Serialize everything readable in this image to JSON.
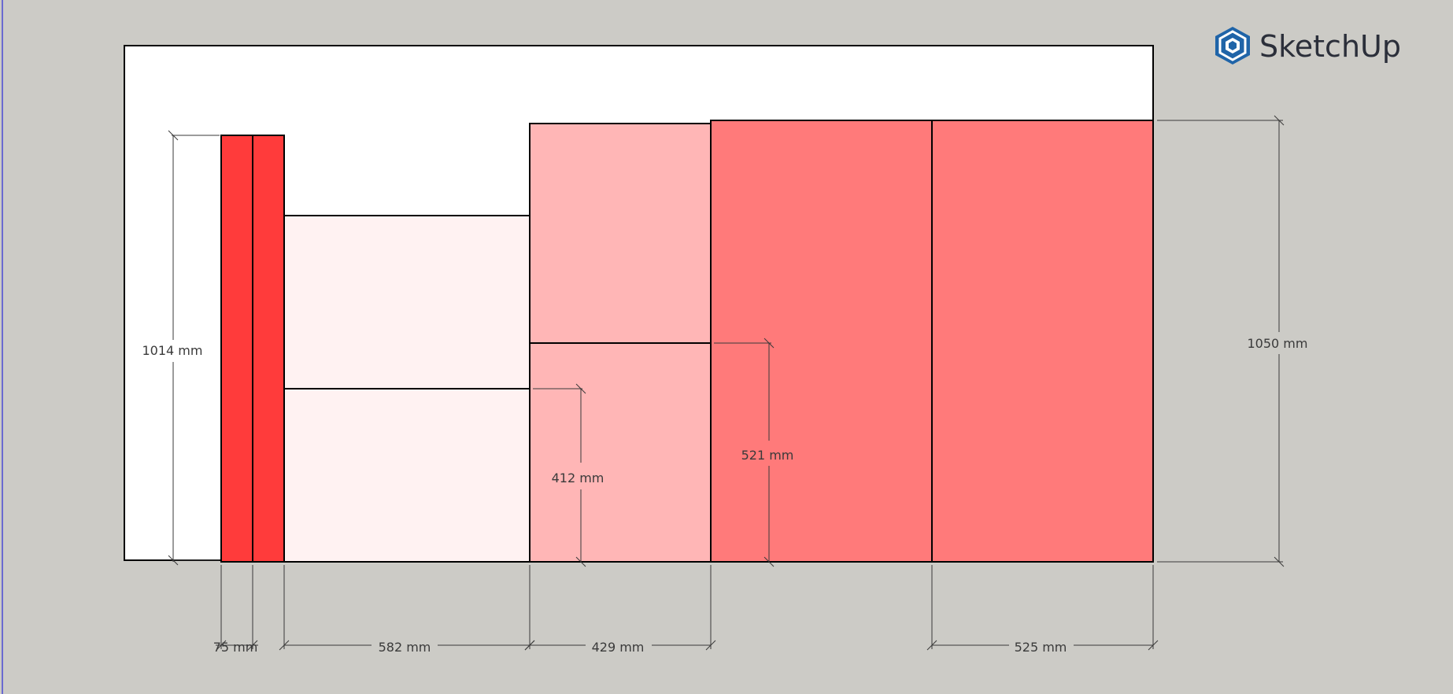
{
  "app": {
    "name": "SketchUp",
    "logo_icon": "sketchup-logo-icon"
  },
  "colors": {
    "background": "#cccbc6",
    "wall": "#ffffff",
    "outline": "#000000",
    "dimension": "#3a3a3a",
    "bar": "#ff3b3b",
    "block_light": "#fff2f2",
    "block_mid": "#ffb6b6",
    "block_dark": "#ff7a7a",
    "logo_blue": "#1f64a8"
  },
  "dimensions": {
    "height_left": "1014 mm",
    "height_right": "1050 mm",
    "height_block_a": "412 mm",
    "height_block_b": "521 mm",
    "width_bars": "75 mm",
    "width_block_1": "582 mm",
    "width_block_2": "429 mm",
    "width_block_4": "525 mm"
  }
}
